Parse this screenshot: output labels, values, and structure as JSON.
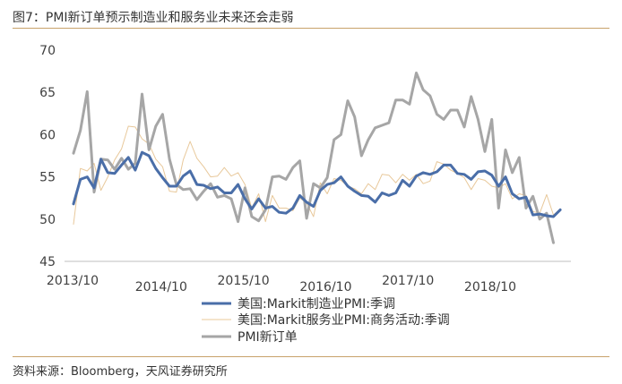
{
  "figure": {
    "title": "图7：PMI新订单预示制造业和服务业未来还会走弱",
    "source": "资料来源：Bloomberg，天风证券研究所"
  },
  "chart_data": {
    "type": "line",
    "ylim": [
      45,
      70
    ],
    "yticks": [
      45,
      50,
      55,
      60,
      65,
      70
    ],
    "x_tick_labels": [
      "2013/10",
      "2014/10",
      "2015/10",
      "2016/10",
      "2017/10",
      "2018/10"
    ],
    "x_tick_indices": [
      0,
      12,
      24,
      36,
      48,
      60
    ],
    "xlabel": "",
    "ylabel": "",
    "legend_position": "bottom",
    "series": [
      {
        "name": "美国:Markit制造业PMI:季调",
        "color": "#4a6ea8",
        "values": [
          51.8,
          54.7,
          55.0,
          53.7,
          57.1,
          55.5,
          55.4,
          56.4,
          57.3,
          55.8,
          57.9,
          57.5,
          56.0,
          54.9,
          53.9,
          53.9,
          55.1,
          55.7,
          54.1,
          54.0,
          53.6,
          53.8,
          53.1,
          53.1,
          54.1,
          52.4,
          51.2,
          52.4,
          51.3,
          51.5,
          50.8,
          50.7,
          51.3,
          52.8,
          52.0,
          51.5,
          53.4,
          54.1,
          54.3,
          55.0,
          53.9,
          53.3,
          52.8,
          52.7,
          52.0,
          53.1,
          52.8,
          53.1,
          54.6,
          53.9,
          55.1,
          55.5,
          55.3,
          55.6,
          56.4,
          56.4,
          55.4,
          55.3,
          54.7,
          55.6,
          55.7,
          55.2,
          53.9,
          55.0,
          53.0,
          52.4,
          52.6,
          50.5,
          50.6,
          50.4,
          50.3,
          51.1
        ]
      },
      {
        "name": "美国:Markit服务业PMI:商务活动:季调",
        "color": "#e8c89a",
        "values": [
          49.4,
          56.0,
          55.7,
          56.6,
          53.4,
          55.0,
          57.0,
          58.3,
          61.0,
          60.9,
          59.5,
          58.9,
          57.1,
          56.2,
          53.3,
          53.2,
          57.0,
          59.2,
          57.2,
          56.2,
          55.0,
          55.1,
          56.1,
          55.1,
          55.5,
          54.1,
          51.3,
          53.0,
          49.7,
          52.8,
          51.3,
          51.3,
          51.0,
          52.5,
          51.9,
          50.3,
          54.3,
          53.0,
          54.8,
          54.6,
          53.9,
          53.6,
          53.0,
          54.2,
          53.5,
          55.3,
          55.2,
          54.3,
          55.3,
          54.6,
          55.3,
          54.2,
          54.5,
          56.8,
          56.5,
          55.8,
          55.4,
          54.9,
          53.5,
          54.8,
          54.6,
          53.9,
          53.7,
          54.2,
          52.4,
          53.0,
          52.8,
          50.9,
          50.7,
          52.9,
          50.5,
          51.2
        ]
      },
      {
        "name": "PMI新订单",
        "color": "#a6a6a6",
        "values": [
          57.8,
          60.5,
          65.1,
          53.2,
          57.1,
          57.0,
          55.9,
          57.2,
          55.9,
          56.6,
          64.8,
          58.2,
          61.0,
          62.4,
          57.1,
          54.1,
          53.5,
          53.6,
          52.3,
          53.3,
          54.2,
          52.6,
          52.8,
          52.4,
          49.7,
          53.7,
          50.3,
          49.8,
          51.1,
          55.0,
          55.1,
          54.7,
          56.1,
          56.9,
          50.1,
          54.2,
          53.7,
          54.9,
          59.4,
          60.0,
          64.0,
          62.1,
          57.5,
          59.4,
          60.8,
          61.1,
          61.4,
          64.1,
          64.1,
          63.6,
          67.3,
          65.3,
          64.6,
          62.4,
          61.8,
          62.9,
          62.9,
          60.9,
          64.5,
          61.8,
          58.0,
          61.8,
          51.3,
          58.2,
          55.5,
          57.3,
          51.3,
          52.7,
          50.0,
          50.7,
          47.2
        ]
      }
    ]
  }
}
